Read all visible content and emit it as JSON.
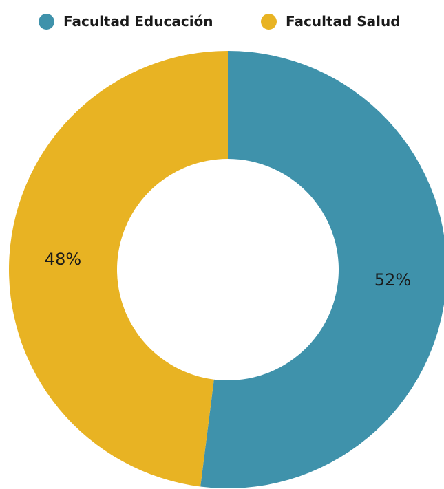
{
  "chart_data": {
    "type": "pie",
    "donut": true,
    "labels": [
      "Facultad Educación",
      "Facultad Salud"
    ],
    "values": [
      52,
      48
    ],
    "value_labels": [
      "52%",
      "48%"
    ],
    "colors": [
      "#3f92ab",
      "#e8b323"
    ],
    "legend_position": "top",
    "start_angle": "top, clockwise"
  }
}
